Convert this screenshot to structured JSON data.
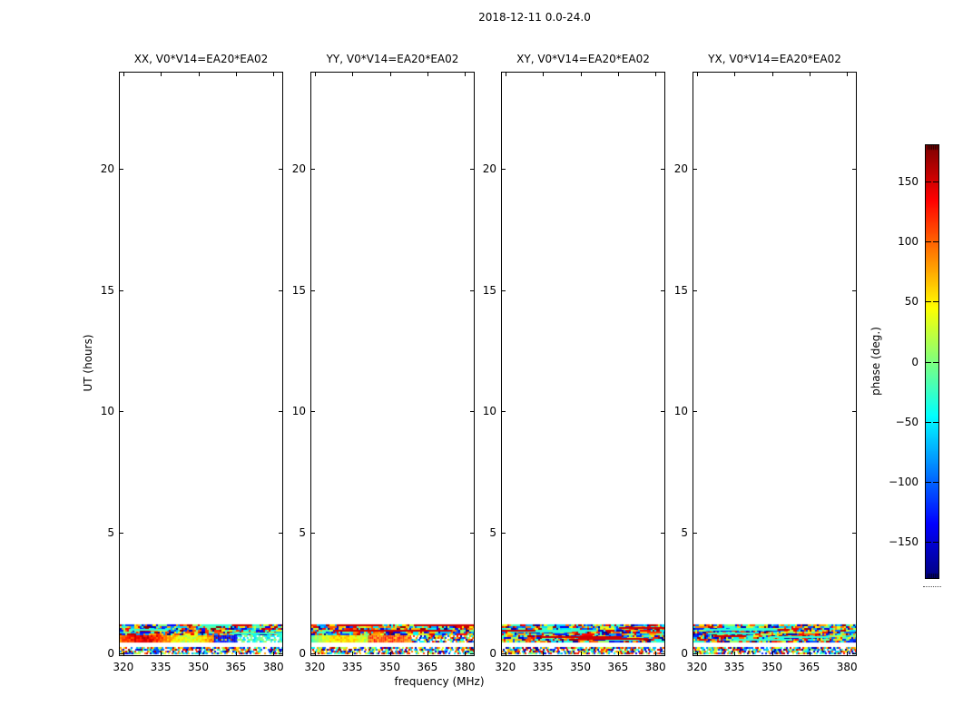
{
  "figure": {
    "title": "2018-12-11 0.0-24.0",
    "background": "#ffffff",
    "axis_color": "#000000"
  },
  "axes": {
    "xlabel": "frequency (MHz)",
    "ylabel": "UT (hours)",
    "x_tick_labels": [
      "320",
      "335",
      "350",
      "365",
      "380"
    ],
    "y_tick_labels": [
      "0",
      "5",
      "10",
      "15",
      "20"
    ]
  },
  "colorbar": {
    "label": "phase (deg.)",
    "tick_labels": [
      "150",
      "100",
      "50",
      "0",
      "−50",
      "−100",
      "−150"
    ],
    "colormap": "jet",
    "top_color": "#7f0000",
    "zero_color": "#80ff80",
    "bottom_color": "#00007f"
  },
  "chart_data": {
    "type": "heatmap",
    "title": "2018-12-11 0.0-24.0",
    "xlabel": "frequency (MHz)",
    "ylabel": "UT (hours)",
    "value_label": "phase (deg.)",
    "colormap": "jet",
    "value_range": [
      -180,
      180
    ],
    "x_range": [
      318.6,
      383.7
    ],
    "y_range": [
      0,
      24.15
    ],
    "x_ticks": [
      320,
      335,
      350,
      365,
      380
    ],
    "y_ticks": [
      0,
      5,
      10,
      15,
      20
    ],
    "colorbar_ticks": [
      150,
      100,
      50,
      0,
      -50,
      -100,
      -150
    ],
    "panels": [
      {
        "title": "XX, V0*V14=EA20*EA02",
        "polarization": "XX",
        "baseline": "V0*V14=EA20*EA02",
        "band_style": "warm",
        "seed": 11
      },
      {
        "title": "YY, V0*V14=EA20*EA02",
        "polarization": "YY",
        "baseline": "V0*V14=EA20*EA02",
        "band_style": "warm2",
        "seed": 22
      },
      {
        "title": "XY, V0*V14=EA20*EA02",
        "polarization": "XY",
        "baseline": "V0*V14=EA20*EA02",
        "band_style": "noise",
        "seed": 33
      },
      {
        "title": "YX, V0*V14=EA20*EA02",
        "polarization": "YX",
        "baseline": "V0*V14=EA20*EA02",
        "band_style": "noise",
        "seed": 44
      }
    ],
    "data_coverage_note": "phase data present only near start of day; UT ~1.3h to 24h is blank (white)",
    "bands_ut": [
      {
        "ut": [
          0.07,
          0.34
        ],
        "kind": "fine-checker-noise"
      },
      {
        "ut": [
          0.34,
          0.52
        ],
        "kind": "blank-gap"
      },
      {
        "ut": [
          0.52,
          0.82
        ],
        "kind": "coherent-phase-band"
      },
      {
        "ut": [
          0.82,
          1.3
        ],
        "kind": "speckle-noise-with-streaks"
      }
    ]
  }
}
